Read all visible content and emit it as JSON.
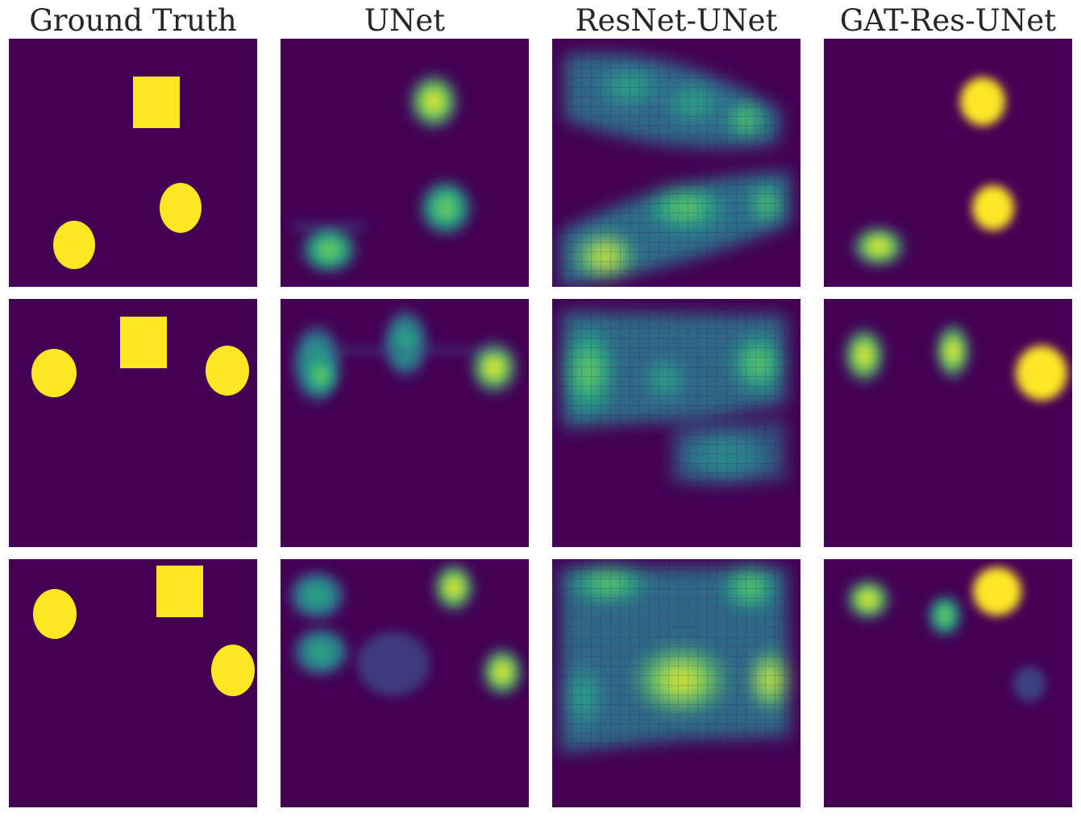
{
  "columns": [
    {
      "title": "Ground Truth"
    },
    {
      "title": "UNet"
    },
    {
      "title": "ResNet-UNet"
    },
    {
      "title": "GAT-Res-UNet"
    }
  ],
  "colors": {
    "background": "#440154",
    "object": "#fde725",
    "mid": "#21918c",
    "low": "#3b528b",
    "high": "#5ec962"
  },
  "colormap": "viridis",
  "rows": 3
}
